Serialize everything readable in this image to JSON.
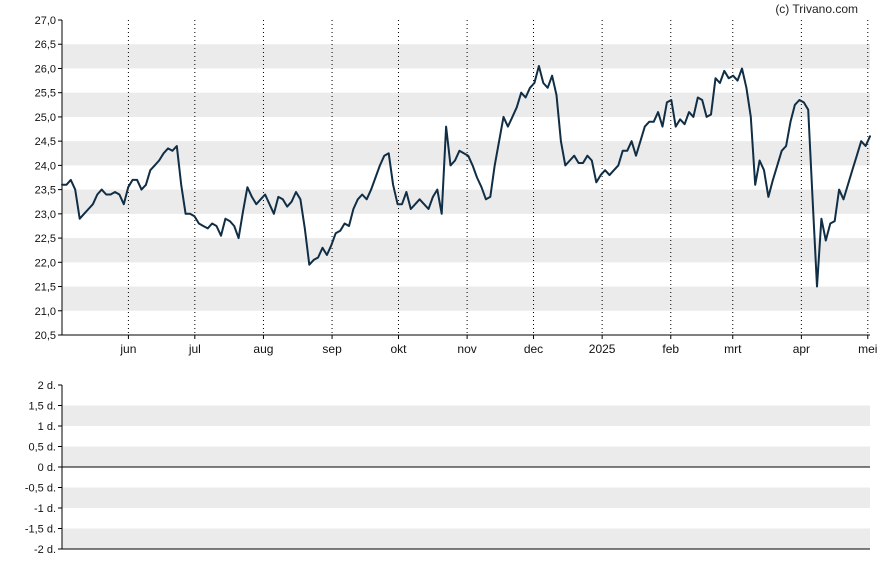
{
  "credit": "(c) Trivano.com",
  "colors": {
    "line": "#102e45",
    "band": "#ebebeb",
    "axis": "#000000",
    "zero_line": "#000000",
    "vgrid": "#000000"
  },
  "chart_data": [
    {
      "type": "line",
      "title": "",
      "xlabel": "",
      "ylabel": "",
      "ylim": [
        20.5,
        27.0
      ],
      "yticks": [
        "27,0",
        "26,5",
        "26,0",
        "25,5",
        "25,0",
        "24,5",
        "24,0",
        "23,5",
        "23,0",
        "22,5",
        "22,0",
        "21,5",
        "21,0",
        "20,5"
      ],
      "xticks": [
        "jun",
        "jul",
        "aug",
        "sep",
        "okt",
        "nov",
        "dec",
        "2025",
        "feb",
        "mrt",
        "apr",
        "mei"
      ],
      "grid": "horizontal bands, dotted vertical lines",
      "series": [
        {
          "values": [
            23.6,
            23.6,
            23.7,
            23.5,
            22.9,
            23.0,
            23.1,
            23.2,
            23.4,
            23.5,
            23.4,
            23.4,
            23.45,
            23.4,
            23.2,
            23.55,
            23.7,
            23.7,
            23.5,
            23.6,
            23.9,
            24.0,
            24.1,
            24.25,
            24.35,
            24.3,
            24.4,
            23.6,
            23.0,
            23.0,
            22.95,
            22.8,
            22.75,
            22.7,
            22.8,
            22.75,
            22.55,
            22.9,
            22.85,
            22.75,
            22.5,
            23.05,
            23.55,
            23.35,
            23.2,
            23.3,
            23.4,
            23.2,
            23.0,
            23.35,
            23.3,
            23.15,
            23.25,
            23.45,
            23.3,
            22.7,
            21.95,
            22.05,
            22.1,
            22.3,
            22.15,
            22.35,
            22.6,
            22.65,
            22.8,
            22.75,
            23.1,
            23.3,
            23.4,
            23.3,
            23.5,
            23.75,
            24.0,
            24.2,
            24.25,
            23.6,
            23.2,
            23.2,
            23.45,
            23.1,
            23.2,
            23.3,
            23.2,
            23.1,
            23.35,
            23.5,
            23.0,
            24.8,
            24.0,
            24.1,
            24.3,
            24.25,
            24.2,
            24.0,
            23.75,
            23.55,
            23.3,
            23.35,
            24.0,
            24.5,
            25.0,
            24.8,
            25.0,
            25.2,
            25.5,
            25.4,
            25.6,
            25.7,
            26.05,
            25.7,
            25.6,
            25.85,
            25.45,
            24.5,
            24.0,
            24.1,
            24.2,
            24.05,
            24.05,
            24.2,
            24.1,
            23.65,
            23.8,
            23.9,
            23.8,
            23.9,
            24.0,
            24.3,
            24.3,
            24.5,
            24.2,
            24.5,
            24.8,
            24.9,
            24.9,
            25.1,
            24.8,
            25.3,
            25.35,
            24.8,
            24.95,
            24.85,
            25.1,
            25.0,
            25.4,
            25.35,
            25.0,
            25.05,
            25.8,
            25.7,
            25.95,
            25.8,
            25.85,
            25.75,
            26.0,
            25.6,
            25.0,
            23.6,
            24.1,
            23.9,
            23.35,
            23.7,
            24.0,
            24.3,
            24.4,
            24.9,
            25.25,
            25.35,
            25.3,
            25.15,
            23.3,
            21.5,
            22.9,
            22.45,
            22.8,
            22.85,
            23.5,
            23.3,
            23.6,
            23.9,
            24.2,
            24.5,
            24.4,
            24.6
          ],
          "start_date": "2024-05-02",
          "end_date": "2025-05-02"
        }
      ]
    },
    {
      "type": "line",
      "title": "",
      "xlabel": "",
      "ylabel": "",
      "ylim": [
        -2,
        2
      ],
      "yticks": [
        "2 d.",
        "1,5 d.",
        "1 d.",
        "0,5 d.",
        "0 d.",
        "-0,5 d.",
        "-1 d.",
        "-1,5 d.",
        "-2 d."
      ],
      "grid": "horizontal bands",
      "series": []
    }
  ]
}
